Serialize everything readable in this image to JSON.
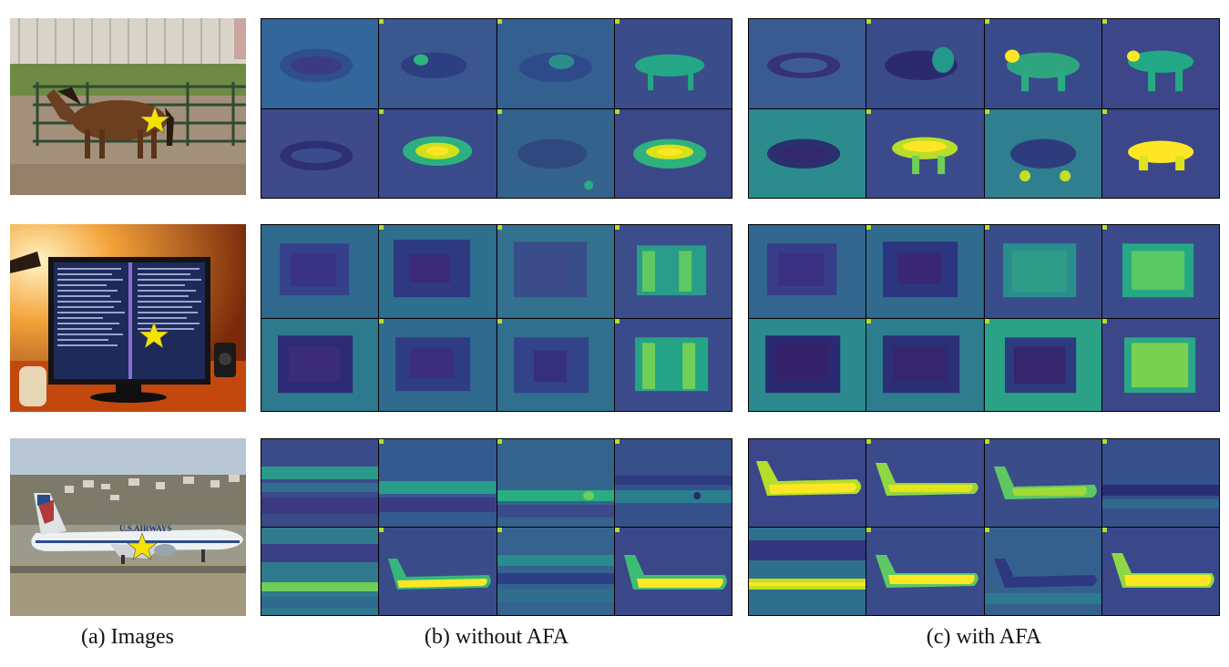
{
  "captions": {
    "images": "(a) Images",
    "without": "(b) without AFA",
    "with": "(c) with AFA"
  },
  "rows": [
    {
      "subject": "horse",
      "photo_icon": "horse-photo",
      "marker_icon": "star-icon"
    },
    {
      "subject": "monitor",
      "photo_icon": "monitor-photo",
      "marker_icon": "star-icon"
    },
    {
      "subject": "airplane",
      "photo_icon": "airplane-photo",
      "marker_icon": "star-icon",
      "livery_text": "U.S.AIRWAYS"
    }
  ],
  "colors": {
    "map_low": "#440154",
    "map_mid": "#21918c",
    "map_high": "#fde725",
    "star": "#f5e200"
  }
}
